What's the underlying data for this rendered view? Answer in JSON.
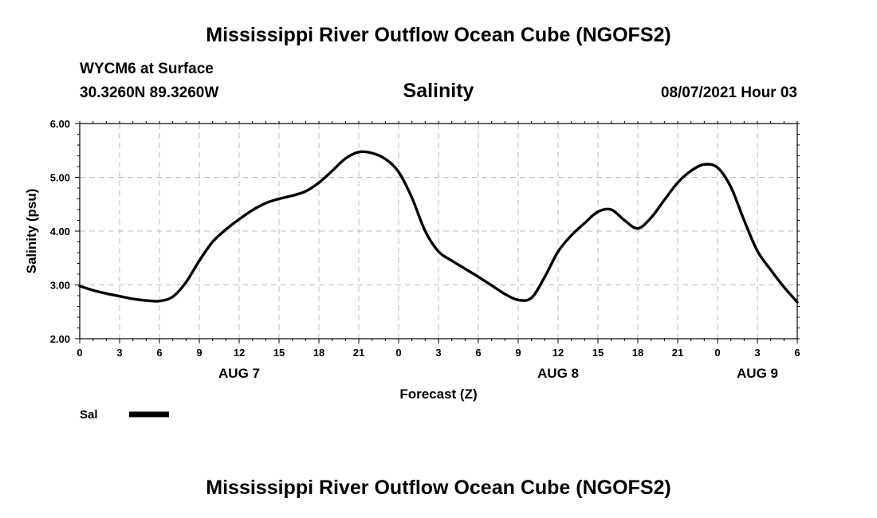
{
  "header": {
    "title": "Mississippi River Outflow Ocean Cube (NGOFS2)",
    "station": "WYCM6 at Surface",
    "coords": "30.3260N  89.3260W",
    "subtitle": "Salinity",
    "datetime": "08/07/2021 Hour 03"
  },
  "footer": {
    "title": "Mississippi River Outflow Ocean Cube (NGOFS2)"
  },
  "chart_data": {
    "type": "line",
    "xlabel": "Forecast (Z)",
    "ylabel": "Salinity (psu)",
    "ylim": [
      2.0,
      6.0
    ],
    "xlim": [
      0,
      54
    ],
    "grid": true,
    "y_ticks": [
      "2.00",
      "3.00",
      "4.00",
      "5.00",
      "6.00"
    ],
    "x_tick_labels": [
      "0",
      "3",
      "6",
      "9",
      "12",
      "15",
      "18",
      "21",
      "0",
      "3",
      "6",
      "9",
      "12",
      "15",
      "18",
      "21",
      "0",
      "3",
      "6"
    ],
    "date_labels": [
      {
        "text": "AUG 7",
        "hour": 12
      },
      {
        "text": "AUG 8",
        "hour": 36
      },
      {
        "text": "AUG 9",
        "hour": 51
      }
    ],
    "series": [
      {
        "name": "Sal",
        "color": "#000000",
        "x": [
          0,
          1,
          2,
          3,
          4,
          5,
          6,
          7,
          8,
          9,
          10,
          11,
          12,
          13,
          14,
          15,
          16,
          17,
          18,
          19,
          20,
          21,
          22,
          23,
          24,
          25,
          26,
          27,
          28,
          29,
          30,
          31,
          32,
          33,
          34,
          35,
          36,
          37,
          38,
          39,
          40,
          41,
          42,
          43,
          44,
          45,
          46,
          47,
          48,
          49,
          50,
          51,
          52,
          53,
          54
        ],
        "y": [
          2.98,
          2.9,
          2.84,
          2.79,
          2.74,
          2.71,
          2.7,
          2.78,
          3.05,
          3.45,
          3.8,
          4.03,
          4.22,
          4.39,
          4.52,
          4.6,
          4.66,
          4.74,
          4.9,
          5.12,
          5.35,
          5.47,
          5.45,
          5.34,
          5.1,
          4.62,
          4.0,
          3.62,
          3.45,
          3.3,
          3.15,
          2.99,
          2.83,
          2.72,
          2.76,
          3.15,
          3.62,
          3.92,
          4.15,
          4.36,
          4.4,
          4.2,
          4.05,
          4.25,
          4.58,
          4.9,
          5.12,
          5.24,
          5.18,
          4.82,
          4.2,
          3.63,
          3.28,
          2.96,
          2.68
        ]
      }
    ],
    "legend": [
      {
        "label": "Sal"
      }
    ]
  }
}
